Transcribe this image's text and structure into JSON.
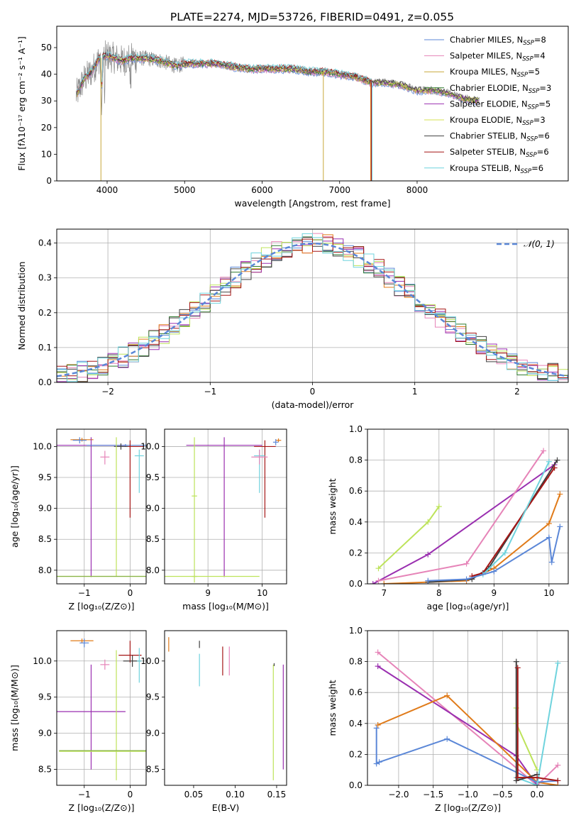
{
  "title": "PLATE=2274, MJD=53726, FIBERID=0491, z=0.055",
  "colors": {
    "chabrier_miles": "#5b87d7",
    "salpeter_miles": "#e684b8",
    "kroupa_miles": "#c8a83a",
    "chabrier_elodie": "#2f7a2f",
    "salpeter_elodie": "#9a2fb0",
    "kroupa_elodie": "#d6e050",
    "chabrier_stelib": "#404040",
    "salpeter_stelib": "#a51616",
    "kroupa_stelib": "#6fd3dd",
    "orange": "#e07b1a",
    "lightgreen": "#bde35a",
    "grid": "#b0b0b0"
  },
  "chart_data": [
    {
      "type": "line",
      "panel": "spectrum",
      "xlabel": "wavelength [Angstrom, rest frame]",
      "ylabel": "Flux [fλ10⁻¹⁷ erg cm⁻² s⁻¹ A⁻¹]",
      "xlim": [
        3350,
        9950
      ],
      "ylim": [
        0,
        58
      ],
      "xticks": [
        4000,
        5000,
        6000,
        7000,
        8000
      ],
      "yticks": [
        0,
        10,
        20,
        30,
        40,
        50
      ],
      "grid": false,
      "legend_position": "top-right",
      "legend": [
        {
          "label": "Chabrier MILES, N",
          "sub": "SSP",
          "n": "=8",
          "color": "#5b87d7"
        },
        {
          "label": "Salpeter MILES, N",
          "sub": "SSP",
          "n": "=4",
          "color": "#e684b8"
        },
        {
          "label": "Kroupa MILES, N",
          "sub": "SSP",
          "n": "=5",
          "color": "#c8a83a"
        },
        {
          "label": "Chabrier ELODIE, N",
          "sub": "SSP",
          "n": "=3",
          "color": "#2f7a2f"
        },
        {
          "label": "Salpeter ELODIE, N",
          "sub": "SSP",
          "n": "=5",
          "color": "#9a2fb0"
        },
        {
          "label": "Kroupa ELODIE, N",
          "sub": "SSP",
          "n": "=3",
          "color": "#d6e050"
        },
        {
          "label": "Chabrier STELIB, N",
          "sub": "SSP",
          "n": "=6",
          "color": "#404040"
        },
        {
          "label": "Salpeter STELIB, N",
          "sub": "SSP",
          "n": "=6",
          "color": "#a51616"
        },
        {
          "label": "Kroupa STELIB, N",
          "sub": "SSP",
          "n": "=6",
          "color": "#6fd3dd"
        }
      ],
      "continuum": {
        "x": [
          3600,
          3700,
          3800,
          3900,
          4000,
          4100,
          4200,
          4300,
          4500,
          4700,
          4900,
          5000,
          5200,
          5400,
          5600,
          5800,
          6000,
          6200,
          6400,
          6600,
          6800,
          7000,
          7200,
          7400,
          7600,
          7800,
          8000,
          8200,
          8400,
          8600,
          8800
        ],
        "y": [
          32,
          38,
          41,
          46,
          47,
          46,
          45,
          46,
          46,
          45,
          43,
          44,
          44,
          44,
          43,
          42,
          42,
          42,
          42,
          41,
          41,
          40,
          39,
          37,
          37,
          36,
          34,
          34,
          33,
          31,
          30
        ]
      }
    },
    {
      "type": "area",
      "panel": "residual-histogram",
      "xlabel": "(data-model)/error",
      "ylabel": "Normed distribution",
      "xlim": [
        -2.5,
        2.5
      ],
      "ylim": [
        0,
        0.44
      ],
      "xticks": [
        -2,
        -1,
        0,
        1,
        2
      ],
      "xtick_labels": [
        "−2",
        "−1",
        "0",
        "1",
        "2"
      ],
      "yticks": [
        0.0,
        0.1,
        0.2,
        0.3,
        0.4
      ],
      "ytick_labels": [
        "0.0",
        "0.1",
        "0.2",
        "0.3",
        "0.4"
      ],
      "grid": true,
      "bin_width": 0.1,
      "legend": [
        {
          "label": "𝒩(0, 1)",
          "color": "#5b87d7",
          "style": "dashed"
        }
      ],
      "legend_position": "top-right",
      "gaussian": {
        "mean": 0,
        "sigma": 1
      }
    },
    {
      "type": "scatter",
      "panel": "age-vs-Z",
      "xlabel": "Z [log₁₀(Z/Z⊙)]",
      "ylabel": "age  [log₁₀(age/yr)]",
      "xlim": [
        -1.6,
        0.35
      ],
      "ylim": [
        7.78,
        10.28
      ],
      "xticks": [
        -1,
        0
      ],
      "xtick_labels": [
        "−1",
        "0"
      ],
      "yticks": [
        8.0,
        8.5,
        9.0,
        9.5,
        10.0
      ],
      "ytick_labels": [
        "8.0",
        "8.5",
        "9.0",
        "9.5",
        "10.0"
      ],
      "grid": true,
      "points": [
        {
          "x": -1.05,
          "xerr": 0.25,
          "y": 10.11,
          "yerr": [
            0.03,
            0.03
          ],
          "color": "#e07b1a"
        },
        {
          "x": -1.1,
          "xerr": 0.15,
          "y": 10.1,
          "yerr": [
            0.05,
            0.05
          ],
          "color": "#5b87d7"
        },
        {
          "x": -0.85,
          "xerr": 0.75,
          "y": 10.02,
          "yerr": [
            2.13,
            0.13
          ],
          "color": "#9a2fb0"
        },
        {
          "x": -0.55,
          "xerr": 0.1,
          "y": 9.83,
          "yerr": [
            0.12,
            0.1
          ],
          "color": "#e684b8"
        },
        {
          "x": -0.1,
          "xerr": 0.85,
          "y": 10.02,
          "yerr": [
            0.02,
            0.02
          ],
          "color": "#5b87d7"
        },
        {
          "x": 0.0,
          "xerr": 0.3,
          "y": 10.0,
          "yerr": [
            1.15,
            0.1
          ],
          "color": "#a51616"
        },
        {
          "x": -0.2,
          "xerr": 0.15,
          "y": 10.0,
          "yerr": [
            0.05,
            0.05
          ],
          "color": "#404040"
        },
        {
          "x": 0.2,
          "xerr": 0.1,
          "y": 9.85,
          "yerr": [
            0.6,
            0.1
          ],
          "color": "#6fd3dd"
        },
        {
          "x": -0.3,
          "xerr": 1.3,
          "y": 7.9,
          "yerr": [
            0.0,
            2.25
          ],
          "color": "#bde35a"
        },
        {
          "x": -0.3,
          "xerr": 1.3,
          "y": 7.9,
          "yerr": [
            0.0,
            0.0
          ],
          "color": "#8ab34a"
        }
      ]
    },
    {
      "type": "scatter",
      "panel": "age-vs-mass",
      "xlabel": "mass [log₁₀(M/M⊙)]",
      "ylabel": "",
      "xlim": [
        8.2,
        10.45
      ],
      "ylim": [
        7.78,
        10.28
      ],
      "xticks": [
        9,
        10
      ],
      "xtick_labels": [
        "9",
        "10"
      ],
      "yticks": [
        8.0,
        8.5,
        9.0,
        9.5,
        10.0
      ],
      "ytick_labels": [
        "8.0",
        "8.5",
        "9.0",
        "9.5",
        "10.0"
      ],
      "grid": true,
      "points": [
        {
          "x": 9.3,
          "xerr": 0.7,
          "y": 10.02,
          "yerr": [
            2.13,
            0.13
          ],
          "color": "#9a2fb0"
        },
        {
          "x": 10.3,
          "xerr": 0.05,
          "y": 10.1,
          "yerr": [
            0.03,
            0.03
          ],
          "color": "#e07b1a"
        },
        {
          "x": 10.25,
          "xerr": 0.05,
          "y": 10.07,
          "yerr": [
            0.05,
            0.05
          ],
          "color": "#5b87d7"
        },
        {
          "x": 10.05,
          "xerr": 0.2,
          "y": 10.0,
          "yerr": [
            1.15,
            0.1
          ],
          "color": "#a51616"
        },
        {
          "x": 9.95,
          "xerr": 0.1,
          "y": 9.85,
          "yerr": [
            0.6,
            0.1
          ],
          "color": "#6fd3dd"
        },
        {
          "x": 9.95,
          "xerr": 0.15,
          "y": 9.83,
          "yerr": [
            0.12,
            0.12
          ],
          "color": "#e684b8"
        },
        {
          "x": 8.75,
          "xerr": 0.05,
          "y": 9.2,
          "yerr": [
            1.4,
            0.95
          ],
          "color": "#bde35a"
        },
        {
          "x": 8.75,
          "xerr": 0.05,
          "y": 7.9,
          "yerr": [
            0.0,
            0.0
          ],
          "color": "#8ab34a"
        },
        {
          "x": 9.0,
          "xerr": 0.95,
          "y": 7.9,
          "yerr": [
            0.0,
            0.0
          ],
          "color": "#bde35a"
        }
      ]
    },
    {
      "type": "line",
      "panel": "mass-weight-vs-age",
      "xlabel": "age  [log₁₀(age/yr)]",
      "ylabel": "mass weight",
      "xlim": [
        6.7,
        10.35
      ],
      "ylim": [
        0,
        1.0
      ],
      "xticks": [
        7,
        8,
        9,
        10
      ],
      "xtick_labels": [
        "7",
        "8",
        "9",
        "10"
      ],
      "yticks": [
        0.0,
        0.2,
        0.4,
        0.6,
        0.8,
        1.0
      ],
      "ytick_labels": [
        "0.0",
        "0.2",
        "0.4",
        "0.6",
        "0.8",
        "1.0"
      ],
      "grid": true,
      "series": [
        {
          "color": "#bde35a",
          "x": [
            6.9,
            7.8,
            8.0
          ],
          "y": [
            0.1,
            0.4,
            0.5
          ]
        },
        {
          "color": "#9a2fb0",
          "x": [
            6.8,
            7.8,
            10.1
          ],
          "y": [
            0.0,
            0.19,
            0.77
          ]
        },
        {
          "color": "#e684b8",
          "x": [
            6.9,
            8.5,
            9.9
          ],
          "y": [
            0.02,
            0.13,
            0.86
          ]
        },
        {
          "color": "#e07b1a",
          "x": [
            7.0,
            8.5,
            9.0,
            10.0,
            10.2
          ],
          "y": [
            0.0,
            0.02,
            0.1,
            0.39,
            0.58
          ]
        },
        {
          "color": "#404040",
          "x": [
            7.8,
            8.6,
            8.9,
            10.15
          ],
          "y": [
            0.01,
            0.03,
            0.1,
            0.8
          ]
        },
        {
          "color": "#a51616",
          "x": [
            8.6,
            8.8,
            10.1
          ],
          "y": [
            0.05,
            0.07,
            0.75
          ]
        },
        {
          "color": "#6fd3dd",
          "x": [
            8.8,
            9.2,
            10.0
          ],
          "y": [
            0.06,
            0.2,
            0.79
          ]
        },
        {
          "color": "#5b87d7",
          "x": [
            7.8,
            8.5,
            9.0,
            10.0,
            10.05,
            10.2
          ],
          "y": [
            0.02,
            0.03,
            0.08,
            0.3,
            0.14,
            0.37
          ]
        }
      ]
    },
    {
      "type": "scatter",
      "panel": "mass-vs-Z",
      "xlabel": "Z [log₁₀(Z/Z⊙)]",
      "ylabel": "mass [log₁₀(M/M⊙)]",
      "xlim": [
        -1.6,
        0.35
      ],
      "ylim": [
        8.28,
        10.42
      ],
      "xticks": [
        -1,
        0
      ],
      "xtick_labels": [
        "−1",
        "0"
      ],
      "yticks": [
        8.5,
        9.0,
        9.5,
        10.0
      ],
      "ytick_labels": [
        "8.5",
        "9.0",
        "9.5",
        "10.0"
      ],
      "grid": true,
      "points": [
        {
          "x": -1.05,
          "xerr": 0.25,
          "y": 10.28,
          "yerr": [
            0.03,
            0.03
          ],
          "color": "#e07b1a"
        },
        {
          "x": -1.0,
          "xerr": 0.1,
          "y": 10.25,
          "yerr": [
            0.06,
            0.06
          ],
          "color": "#5b87d7"
        },
        {
          "x": -0.85,
          "xerr": 0.75,
          "y": 9.3,
          "yerr": [
            0.8,
            0.65
          ],
          "color": "#9a2fb0"
        },
        {
          "x": -0.55,
          "xerr": 0.1,
          "y": 9.95,
          "yerr": [
            0.07,
            0.07
          ],
          "color": "#e684b8"
        },
        {
          "x": 0.0,
          "xerr": 0.25,
          "y": 10.08,
          "yerr": [
            0.1,
            0.2
          ],
          "color": "#a51616"
        },
        {
          "x": 0.05,
          "xerr": 0.2,
          "y": 10.0,
          "yerr": [
            0.08,
            0.08
          ],
          "color": "#404040"
        },
        {
          "x": 0.2,
          "xerr": 0.05,
          "y": 10.0,
          "yerr": [
            0.3,
            0.18
          ],
          "color": "#6fd3dd"
        },
        {
          "x": -0.3,
          "xerr": 1.25,
          "y": 8.75,
          "yerr": [
            0.4,
            1.4
          ],
          "color": "#bde35a"
        },
        {
          "x": -0.3,
          "xerr": 1.25,
          "y": 8.76,
          "yerr": [
            0.0,
            0.0
          ],
          "color": "#8ab34a"
        }
      ]
    },
    {
      "type": "scatter",
      "panel": "mass-vs-EBV",
      "xlabel": "E(B-V)",
      "ylabel": "",
      "xlim": [
        0.015,
        0.162
      ],
      "ylim": [
        8.28,
        10.42
      ],
      "xticks": [
        0.05,
        0.1,
        0.15
      ],
      "xtick_labels": [
        "0.05",
        "0.10",
        "0.15"
      ],
      "yticks": [
        8.5,
        9.0,
        9.5,
        10.0
      ],
      "ytick_labels": [
        "8.5",
        "9.0",
        "9.5",
        "10.0"
      ],
      "grid": false,
      "points": [
        {
          "x": 0.02,
          "y": 10.28,
          "yerr": [
            0.15,
            0.05
          ],
          "color": "#e07b1a"
        },
        {
          "x": 0.057,
          "y": 10.23,
          "yerr": [
            0.05,
            0.05
          ],
          "color": "#404040"
        },
        {
          "x": 0.057,
          "y": 9.95,
          "yerr": [
            0.3,
            0.15
          ],
          "color": "#6fd3dd"
        },
        {
          "x": 0.085,
          "y": 10.0,
          "yerr": [
            0.2,
            0.2
          ],
          "color": "#a51616"
        },
        {
          "x": 0.093,
          "y": 10.0,
          "yerr": [
            0.2,
            0.2
          ],
          "color": "#e684b8"
        },
        {
          "x": 0.146,
          "y": 9.3,
          "yerr": [
            0.95,
            0.65
          ],
          "color": "#bde35a"
        },
        {
          "x": 0.147,
          "y": 9.95,
          "yerr": [
            0.02,
            0.02
          ],
          "color": "#404040"
        },
        {
          "x": 0.158,
          "y": 9.3,
          "yerr": [
            0.8,
            0.65
          ],
          "color": "#9a2fb0"
        }
      ]
    },
    {
      "type": "line",
      "panel": "mass-weight-vs-Z",
      "xlabel": "Z [log₁₀(Z/Z⊙)]",
      "ylabel": "mass weight",
      "xlim": [
        -2.45,
        0.45
      ],
      "ylim": [
        0,
        1.0
      ],
      "xticks": [
        -2.0,
        -1.5,
        -1.0,
        -0.5,
        0.0
      ],
      "xtick_labels": [
        "−2.0",
        "−1.5",
        "−1.0",
        "−0.5",
        "0.0"
      ],
      "yticks": [
        0.0,
        0.2,
        0.4,
        0.6,
        0.8,
        1.0
      ],
      "ytick_labels": [
        "0.0",
        "0.2",
        "0.4",
        "0.6",
        "0.8",
        "1.0"
      ],
      "grid": true,
      "series": [
        {
          "color": "#e684b8",
          "x": [
            -2.3,
            0.0,
            0.3
          ],
          "y": [
            0.86,
            0.0,
            0.13
          ]
        },
        {
          "color": "#9a2fb0",
          "x": [
            -2.3,
            -0.3,
            0.0
          ],
          "y": [
            0.77,
            0.19,
            0.0
          ]
        },
        {
          "color": "#e07b1a",
          "x": [
            -2.3,
            -1.3,
            0.0,
            0.3
          ],
          "y": [
            0.39,
            0.58,
            0.02,
            0.0
          ]
        },
        {
          "color": "#5b87d7",
          "x": [
            -2.32,
            -2.32,
            -2.28,
            -1.3,
            0.0,
            0.3
          ],
          "y": [
            0.37,
            0.14,
            0.15,
            0.3,
            0.02,
            0.03
          ]
        },
        {
          "color": "#bde35a",
          "x": [
            -0.3,
            -0.3,
            0.0
          ],
          "y": [
            0.5,
            0.4,
            0.1
          ]
        },
        {
          "color": "#6fd3dd",
          "x": [
            -0.3,
            0.0,
            0.3
          ],
          "y": [
            0.05,
            0.0,
            0.79
          ]
        },
        {
          "color": "#404040",
          "x": [
            -0.3,
            -0.3,
            0.0
          ],
          "y": [
            0.8,
            0.03,
            0.07
          ]
        },
        {
          "color": "#a51616",
          "x": [
            -0.28,
            -0.28,
            0.0,
            0.3
          ],
          "y": [
            0.76,
            0.05,
            0.05,
            0.03
          ]
        }
      ]
    }
  ]
}
